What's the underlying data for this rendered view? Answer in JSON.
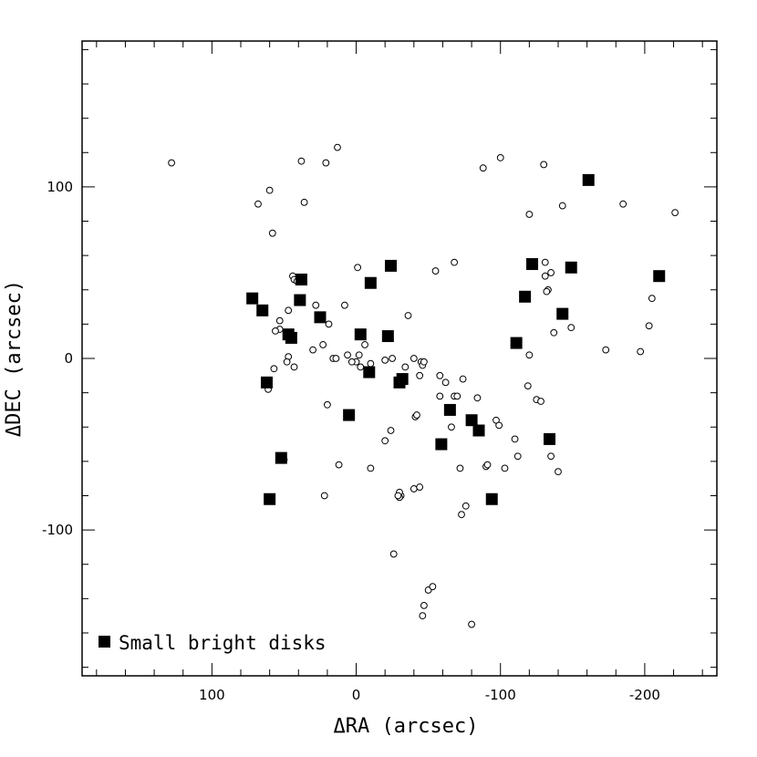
{
  "chart_data": {
    "type": "scatter",
    "xlabel": "ΔRA (arcsec)",
    "ylabel": "ΔDEC (arcsec)",
    "xlim": [
      190,
      -250
    ],
    "ylim": [
      -185,
      185
    ],
    "x_ticks": [
      100,
      0,
      -100,
      -200
    ],
    "x_tick_labels": [
      "100",
      "0",
      "-100",
      "-200"
    ],
    "y_ticks": [
      100,
      0,
      -100
    ],
    "y_tick_labels": [
      "100",
      "0",
      "-100"
    ],
    "legend": {
      "position": "bottom-left",
      "entries": [
        "Small bright disks"
      ]
    },
    "series": [
      {
        "name": "Small bright disks",
        "marker": "filled-square",
        "points": [
          [
            72,
            35
          ],
          [
            65,
            28
          ],
          [
            47,
            14
          ],
          [
            45,
            12
          ],
          [
            38,
            46
          ],
          [
            39,
            34
          ],
          [
            25,
            24
          ],
          [
            62,
            -14
          ],
          [
            52,
            -58
          ],
          [
            60,
            -82
          ],
          [
            -3,
            14
          ],
          [
            -10,
            44
          ],
          [
            -9,
            -8
          ],
          [
            -22,
            13
          ],
          [
            -24,
            54
          ],
          [
            -32,
            -12
          ],
          [
            -30,
            -14
          ],
          [
            5,
            -33
          ],
          [
            -65,
            -30
          ],
          [
            -59,
            -50
          ],
          [
            -80,
            -36
          ],
          [
            -85,
            -42
          ],
          [
            -94,
            -82
          ],
          [
            -111,
            9
          ],
          [
            -117,
            36
          ],
          [
            -122,
            55
          ],
          [
            -134,
            -47
          ],
          [
            -143,
            26
          ],
          [
            -149,
            53
          ],
          [
            -161,
            104
          ],
          [
            -210,
            48
          ]
        ]
      },
      {
        "name": "",
        "marker": "open-circle",
        "points": [
          [
            128,
            114
          ],
          [
            68,
            90
          ],
          [
            60,
            98
          ],
          [
            58,
            73
          ],
          [
            38,
            115
          ],
          [
            36,
            91
          ],
          [
            13,
            123
          ],
          [
            21,
            114
          ],
          [
            44,
            48
          ],
          [
            43,
            46
          ],
          [
            41,
            45
          ],
          [
            28,
            31
          ],
          [
            8,
            31
          ],
          [
            -1,
            53
          ],
          [
            53,
            22
          ],
          [
            47,
            28
          ],
          [
            53,
            17
          ],
          [
            56,
            16
          ],
          [
            47,
            1
          ],
          [
            48,
            -2
          ],
          [
            43,
            -5
          ],
          [
            61,
            -18
          ],
          [
            57,
            -6
          ],
          [
            50,
            -59
          ],
          [
            20,
            -27
          ],
          [
            19,
            20
          ],
          [
            23,
            8
          ],
          [
            30,
            5
          ],
          [
            16,
            0
          ],
          [
            -6,
            8
          ],
          [
            -2,
            2
          ],
          [
            0,
            -2
          ],
          [
            -3,
            -5
          ],
          [
            -10,
            -3
          ],
          [
            -20,
            -1
          ],
          [
            -10,
            -64
          ],
          [
            22,
            -80
          ],
          [
            12,
            -62
          ],
          [
            3,
            -2
          ],
          [
            -36,
            25
          ],
          [
            -20,
            -48
          ],
          [
            -24,
            -42
          ],
          [
            -31,
            -80
          ],
          [
            -30,
            -81
          ],
          [
            -30,
            -78
          ],
          [
            -34,
            -5
          ],
          [
            -40,
            0
          ],
          [
            -41,
            -34
          ],
          [
            -42,
            -33
          ],
          [
            -44,
            -10
          ],
          [
            -45,
            -2
          ],
          [
            -46,
            -4
          ],
          [
            -47,
            -2
          ],
          [
            -29,
            -80
          ],
          [
            -40,
            -76
          ],
          [
            -44,
            -75
          ],
          [
            -26,
            -114
          ],
          [
            -50,
            -135
          ],
          [
            -53,
            -133
          ],
          [
            -47,
            -144
          ],
          [
            -46,
            -150
          ],
          [
            -80,
            -155
          ],
          [
            -55,
            51
          ],
          [
            -68,
            56
          ],
          [
            -58,
            -10
          ],
          [
            -62,
            -14
          ],
          [
            -58,
            -22
          ],
          [
            -68,
            -22
          ],
          [
            -70,
            -22
          ],
          [
            -66,
            -40
          ],
          [
            -72,
            -64
          ],
          [
            -76,
            -86
          ],
          [
            -73,
            -91
          ],
          [
            -74,
            -12
          ],
          [
            -84,
            -23
          ],
          [
            -88,
            111
          ],
          [
            -90,
            -63
          ],
          [
            -91,
            -62
          ],
          [
            -97,
            -36
          ],
          [
            -99,
            -39
          ],
          [
            -100,
            117
          ],
          [
            -103,
            -64
          ],
          [
            -112,
            -57
          ],
          [
            -110,
            -47
          ],
          [
            -119,
            -16
          ],
          [
            -120,
            2
          ],
          [
            -120,
            84
          ],
          [
            -125,
            -24
          ],
          [
            -128,
            -25
          ],
          [
            -130,
            113
          ],
          [
            -131,
            56
          ],
          [
            -131,
            48
          ],
          [
            -133,
            40
          ],
          [
            -132,
            39
          ],
          [
            -135,
            50
          ],
          [
            -135,
            -57
          ],
          [
            -137,
            15
          ],
          [
            -140,
            -66
          ],
          [
            -143,
            89
          ],
          [
            -149,
            18
          ],
          [
            -173,
            5
          ],
          [
            -185,
            90
          ],
          [
            -197,
            4
          ],
          [
            -203,
            19
          ],
          [
            -205,
            35
          ],
          [
            -221,
            85
          ],
          [
            14,
            0
          ],
          [
            6,
            2
          ],
          [
            -25,
            0
          ]
        ]
      }
    ],
    "grid": false
  }
}
